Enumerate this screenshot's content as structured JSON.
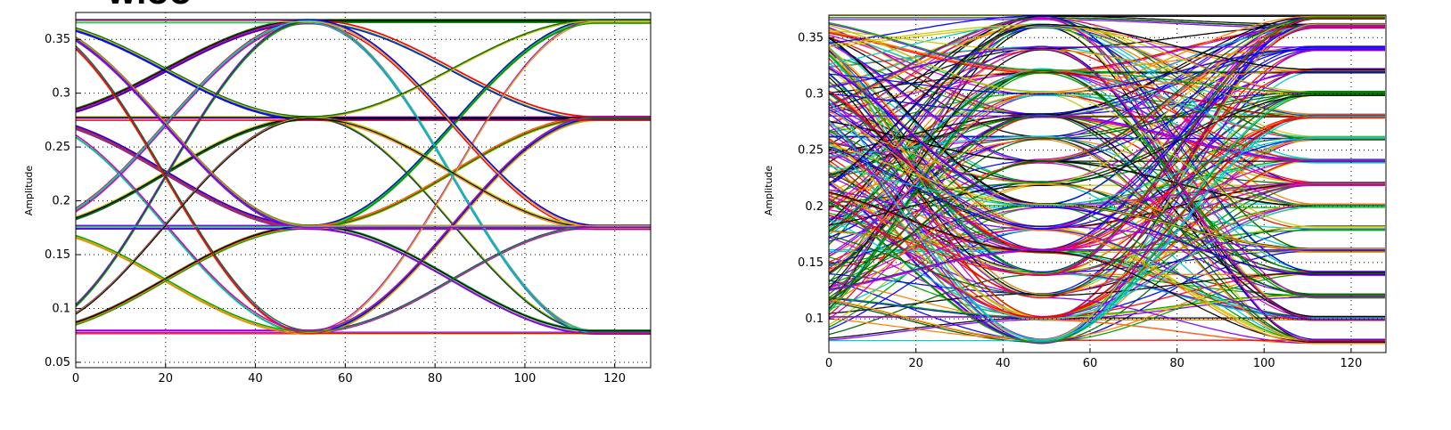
{
  "figure_title_fragment": "WIOO",
  "colors": [
    "#ff0000",
    "#0000ff",
    "#00a000",
    "#00c8c8",
    "#c800c8",
    "#c8c800",
    "#000000",
    "#ff7f00",
    "#8000ff",
    "#006400"
  ],
  "chart_data": [
    {
      "type": "line",
      "plot": "eye-diagram",
      "title": "",
      "xlabel": "",
      "ylabel": "Amplitude",
      "xlim": [
        0,
        128
      ],
      "ylim": [
        0.045,
        0.375
      ],
      "xticks": [
        0,
        20,
        40,
        60,
        80,
        100,
        120
      ],
      "yticks": [
        0.05,
        0.1,
        0.15,
        0.2,
        0.25,
        0.3,
        0.35
      ],
      "ytick_labels": [
        "0.05",
        "0.1",
        "0.15",
        "0.2",
        "0.25",
        "0.3",
        "0.35"
      ],
      "grid": true,
      "levels": [
        0.078,
        0.1755,
        0.2765,
        0.3665
      ],
      "symbol_centers": [
        -12,
        52,
        115
      ],
      "crossings": [
        20,
        84
      ],
      "trace_count": 110
    },
    {
      "type": "line",
      "plot": "eye-diagram",
      "title": "",
      "xlabel": "",
      "ylabel": "Amplitude",
      "xlim": [
        0,
        128
      ],
      "ylim": [
        0.07,
        0.37
      ],
      "xticks": [
        0,
        20,
        40,
        60,
        80,
        100,
        120
      ],
      "yticks": [
        0.1,
        0.15,
        0.2,
        0.25,
        0.3,
        0.35
      ],
      "ytick_labels": [
        "0.1",
        "0.15",
        "0.2",
        "0.25",
        "0.3",
        "0.35"
      ],
      "grid": true,
      "levels": [
        0.08,
        0.1005,
        0.1205,
        0.1405,
        0.1605,
        0.1805,
        0.2005,
        0.2205,
        0.2405,
        0.2605,
        0.2805,
        0.3005,
        0.3205,
        0.3405,
        0.3605,
        0.368
      ],
      "symbol_centers": [
        -14,
        49,
        112
      ],
      "crossings": [
        17,
        80
      ],
      "trace_count": 260
    }
  ]
}
